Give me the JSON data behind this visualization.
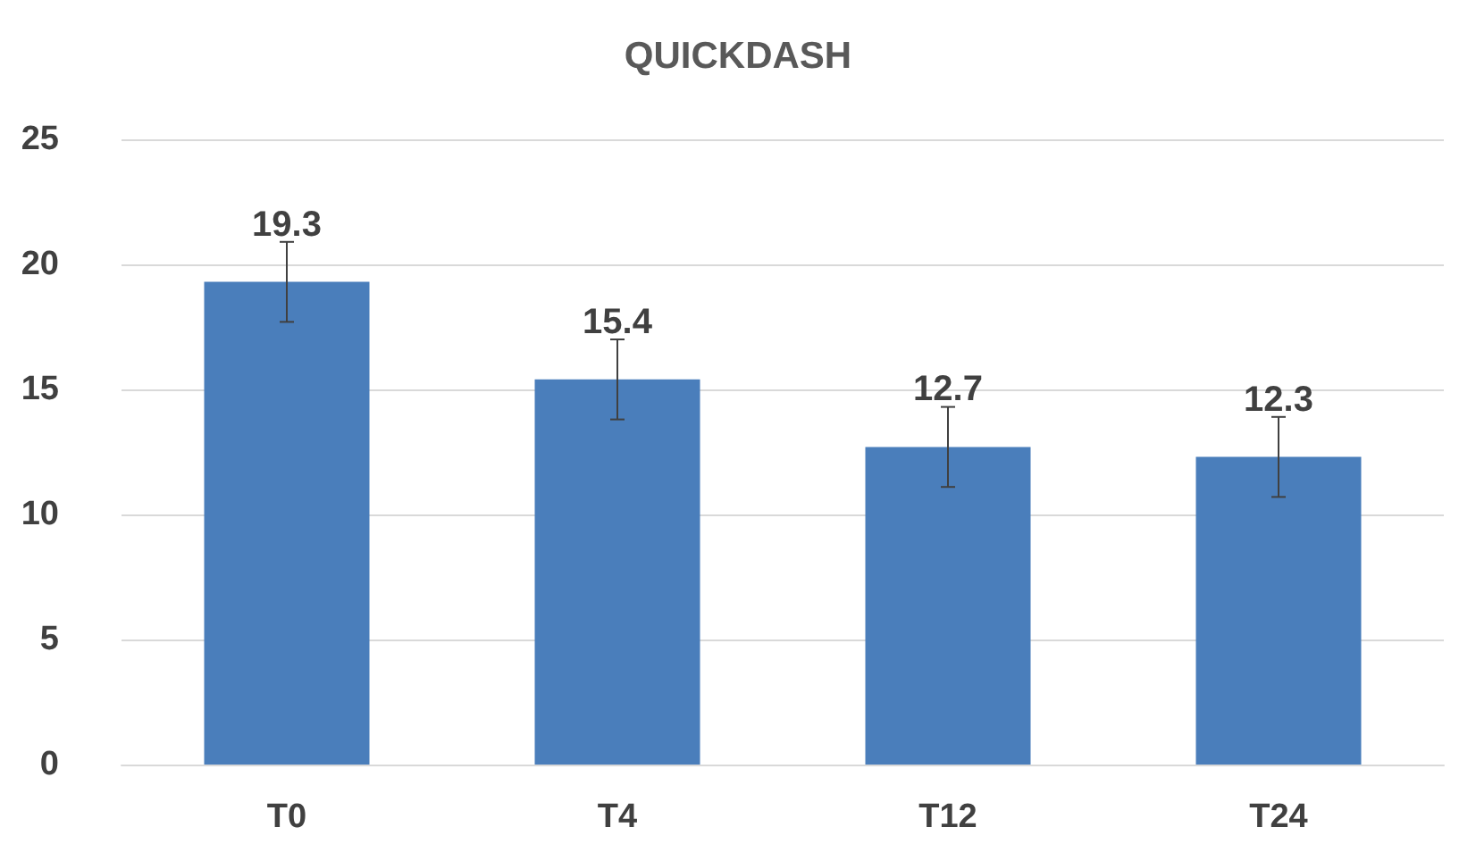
{
  "chart_data": {
    "type": "bar",
    "title": "QUICKDASH",
    "categories": [
      "T0",
      "T4",
      "T12",
      "T24"
    ],
    "values": [
      19.3,
      15.4,
      12.7,
      12.3
    ],
    "errors": [
      1.6,
      1.6,
      1.6,
      1.6
    ],
    "color": "#4a7ebb",
    "ylim": [
      0,
      25
    ],
    "yticks": [
      0,
      5,
      10,
      15,
      20,
      25
    ],
    "grid": "y",
    "data_labels": true
  }
}
